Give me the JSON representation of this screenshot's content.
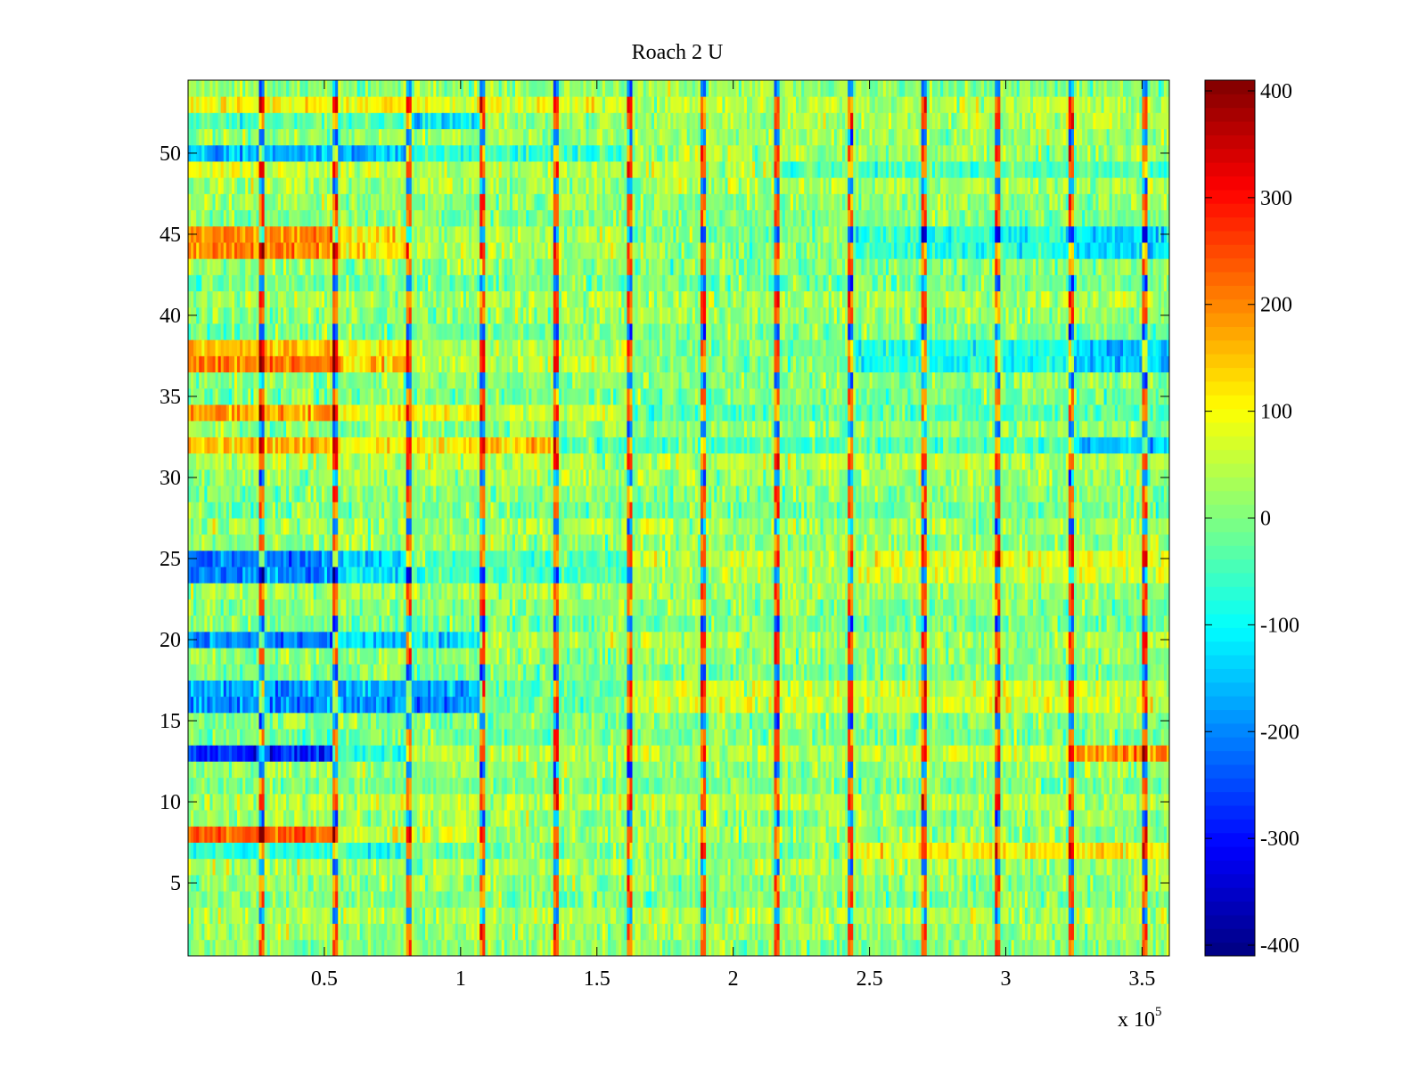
{
  "chart_data": {
    "type": "heatmap",
    "title": "Roach 2 U",
    "xlabel": "",
    "ylabel": "",
    "x_multiplier_label": "x 10",
    "x_multiplier_exponent": "5",
    "xlim": [
      0,
      360000
    ],
    "ylim": [
      0.5,
      54.5
    ],
    "n_rows": 54,
    "x_ticks": [
      {
        "value": 50000,
        "label": "0.5"
      },
      {
        "value": 100000,
        "label": "1"
      },
      {
        "value": 150000,
        "label": "1.5"
      },
      {
        "value": 200000,
        "label": "2"
      },
      {
        "value": 250000,
        "label": "2.5"
      },
      {
        "value": 300000,
        "label": "3"
      },
      {
        "value": 350000,
        "label": "3.5"
      }
    ],
    "y_ticks": [
      {
        "value": 5,
        "label": "5"
      },
      {
        "value": 10,
        "label": "10"
      },
      {
        "value": 15,
        "label": "15"
      },
      {
        "value": 20,
        "label": "20"
      },
      {
        "value": 25,
        "label": "25"
      },
      {
        "value": 30,
        "label": "30"
      },
      {
        "value": 35,
        "label": "35"
      },
      {
        "value": 40,
        "label": "40"
      },
      {
        "value": 45,
        "label": "45"
      },
      {
        "value": 50,
        "label": "50"
      }
    ],
    "colorbar": {
      "colormap": "jet",
      "clim": [
        -410,
        410
      ],
      "ticks": [
        {
          "value": 400,
          "label": "400"
        },
        {
          "value": 300,
          "label": "300"
        },
        {
          "value": 200,
          "label": "200"
        },
        {
          "value": 100,
          "label": "100"
        },
        {
          "value": 0,
          "label": "0"
        },
        {
          "value": -100,
          "label": "-100"
        },
        {
          "value": -200,
          "label": "-200"
        },
        {
          "value": -300,
          "label": "-300"
        },
        {
          "value": -400,
          "label": "-400"
        }
      ]
    },
    "segment_boundaries": [
      0,
      27000,
      54000,
      81000,
      108000,
      135000,
      162000,
      189000,
      216000,
      243000,
      270000,
      297000,
      324000,
      351000,
      360000
    ],
    "spike_lines": [
      27000,
      54000,
      81000,
      108000,
      135000,
      162000,
      189000,
      216000,
      243000,
      270000,
      297000,
      324000,
      351000
    ],
    "row_segment_means": [
      {
        "row": 44,
        "segments": [
          [
            0,
            54000,
            190
          ],
          [
            54000,
            81000,
            110
          ],
          [
            81000,
            162000,
            40
          ],
          [
            162000,
            243000,
            0
          ],
          [
            243000,
            324000,
            -70
          ],
          [
            324000,
            360000,
            -140
          ]
        ]
      },
      {
        "row": 45,
        "segments": [
          [
            0,
            54000,
            200
          ],
          [
            54000,
            81000,
            120
          ],
          [
            81000,
            162000,
            40
          ],
          [
            162000,
            243000,
            0
          ],
          [
            243000,
            324000,
            -70
          ],
          [
            324000,
            360000,
            -140
          ]
        ]
      },
      {
        "row": 37,
        "segments": [
          [
            0,
            54000,
            210
          ],
          [
            54000,
            81000,
            140
          ],
          [
            81000,
            162000,
            50
          ],
          [
            162000,
            243000,
            -10
          ],
          [
            243000,
            324000,
            -90
          ],
          [
            324000,
            360000,
            -160
          ]
        ]
      },
      {
        "row": 38,
        "segments": [
          [
            0,
            54000,
            150
          ],
          [
            54000,
            81000,
            100
          ],
          [
            81000,
            162000,
            40
          ],
          [
            162000,
            243000,
            -10
          ],
          [
            243000,
            324000,
            -80
          ],
          [
            324000,
            360000,
            -140
          ]
        ]
      },
      {
        "row": 34,
        "segments": [
          [
            0,
            54000,
            170
          ],
          [
            54000,
            108000,
            100
          ],
          [
            108000,
            162000,
            60
          ],
          [
            162000,
            360000,
            -40
          ]
        ]
      },
      {
        "row": 32,
        "segments": [
          [
            0,
            54000,
            160
          ],
          [
            54000,
            108000,
            100
          ],
          [
            108000,
            135000,
            140
          ],
          [
            135000,
            162000,
            -40
          ],
          [
            162000,
            324000,
            -40
          ],
          [
            324000,
            360000,
            -160
          ]
        ]
      },
      {
        "row": 8,
        "segments": [
          [
            0,
            54000,
            240
          ],
          [
            54000,
            108000,
            60
          ],
          [
            108000,
            360000,
            20
          ]
        ]
      },
      {
        "row": 7,
        "segments": [
          [
            0,
            81000,
            -80
          ],
          [
            81000,
            243000,
            0
          ],
          [
            243000,
            360000,
            100
          ]
        ]
      },
      {
        "row": 13,
        "segments": [
          [
            0,
            54000,
            -270
          ],
          [
            54000,
            81000,
            -60
          ],
          [
            81000,
            243000,
            40
          ],
          [
            243000,
            324000,
            60
          ],
          [
            324000,
            360000,
            180
          ]
        ]
      },
      {
        "row": 25,
        "segments": [
          [
            0,
            54000,
            -210
          ],
          [
            54000,
            81000,
            -130
          ],
          [
            81000,
            162000,
            -40
          ],
          [
            162000,
            243000,
            40
          ],
          [
            243000,
            324000,
            80
          ],
          [
            324000,
            360000,
            90
          ]
        ]
      },
      {
        "row": 24,
        "segments": [
          [
            0,
            54000,
            -200
          ],
          [
            54000,
            81000,
            -120
          ],
          [
            81000,
            162000,
            -40
          ],
          [
            162000,
            243000,
            30
          ],
          [
            243000,
            324000,
            60
          ],
          [
            324000,
            360000,
            70
          ]
        ]
      },
      {
        "row": 16,
        "segments": [
          [
            0,
            108000,
            -190
          ],
          [
            108000,
            162000,
            -20
          ],
          [
            162000,
            360000,
            60
          ]
        ]
      },
      {
        "row": 17,
        "segments": [
          [
            0,
            108000,
            -170
          ],
          [
            108000,
            162000,
            -20
          ],
          [
            162000,
            360000,
            60
          ]
        ]
      },
      {
        "row": 20,
        "segments": [
          [
            0,
            54000,
            -200
          ],
          [
            54000,
            108000,
            -120
          ],
          [
            108000,
            360000,
            30
          ]
        ]
      },
      {
        "row": 50,
        "segments": [
          [
            0,
            81000,
            -160
          ],
          [
            81000,
            162000,
            -60
          ],
          [
            162000,
            360000,
            20
          ]
        ]
      },
      {
        "row": 52,
        "segments": [
          [
            0,
            81000,
            -40
          ],
          [
            81000,
            108000,
            -130
          ],
          [
            108000,
            216000,
            20
          ],
          [
            216000,
            360000,
            40
          ]
        ]
      },
      {
        "row": 53,
        "segments": [
          [
            0,
            81000,
            100
          ],
          [
            81000,
            162000,
            80
          ],
          [
            162000,
            360000,
            40
          ]
        ]
      },
      {
        "row": 49,
        "segments": [
          [
            0,
            81000,
            60
          ],
          [
            81000,
            216000,
            40
          ],
          [
            216000,
            360000,
            -40
          ]
        ]
      }
    ],
    "notes": "Dense per-channel time series rendered as a colour image; mostly values between -100 and +100 with vertical spike lines every ~27000 samples."
  }
}
